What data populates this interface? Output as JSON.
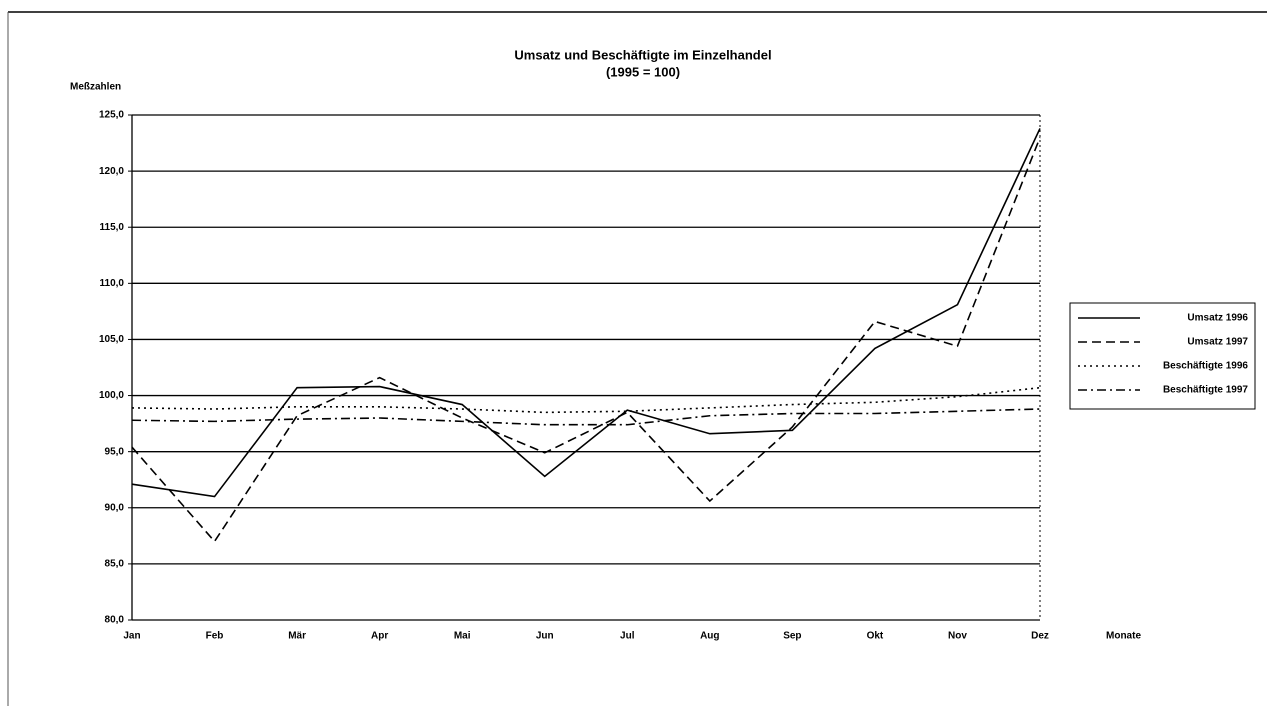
{
  "chart_data": {
    "type": "line",
    "title": "Umsatz und Beschäftigte im Einzelhandel",
    "subtitle": "(1995 = 100)",
    "y_label": "Meßzahlen",
    "x_label": "Monate",
    "categories": [
      "Jan",
      "Feb",
      "Mär",
      "Apr",
      "Mai",
      "Jun",
      "Jul",
      "Aug",
      "Sep",
      "Okt",
      "Nov",
      "Dez"
    ],
    "series": [
      {
        "name": "Umsatz 1996",
        "color": "#000000",
        "dash": "solid",
        "values": [
          92.1,
          91.0,
          100.7,
          100.8,
          99.2,
          92.8,
          98.7,
          96.6,
          96.9,
          104.2,
          108.1,
          123.8
        ]
      },
      {
        "name": "Umsatz 1997",
        "color": "#000000",
        "dash": "dashed",
        "values": [
          95.4,
          87.0,
          98.2,
          101.6,
          98.0,
          94.9,
          98.5,
          90.6,
          97.2,
          106.6,
          104.4,
          123.0
        ]
      },
      {
        "name": "Beschäftigte 1996",
        "color": "#000000",
        "dash": "dotted",
        "values": [
          98.9,
          98.8,
          99.0,
          99.0,
          98.8,
          98.5,
          98.6,
          98.9,
          99.2,
          99.4,
          99.9,
          100.7
        ]
      },
      {
        "name": "Beschäftigte 1997",
        "color": "#000000",
        "dash": "dashdot",
        "values": [
          97.8,
          97.7,
          97.9,
          98.0,
          97.7,
          97.4,
          97.4,
          98.2,
          98.4,
          98.4,
          98.6,
          98.8
        ]
      }
    ],
    "ylim": [
      80,
      125
    ],
    "yticks": [
      {
        "value": 80,
        "label": "80,0"
      },
      {
        "value": 85,
        "label": "85,0"
      },
      {
        "value": 90,
        "label": "90,0"
      },
      {
        "value": 95,
        "label": "95,0"
      },
      {
        "value": 100,
        "label": "100,0"
      },
      {
        "value": 105,
        "label": "105,0"
      },
      {
        "value": 110,
        "label": "110,0"
      },
      {
        "value": 115,
        "label": "115,0"
      },
      {
        "value": 120,
        "label": "120,0"
      },
      {
        "value": 125,
        "label": "125,0"
      }
    ],
    "grid": true,
    "legend": "right"
  }
}
